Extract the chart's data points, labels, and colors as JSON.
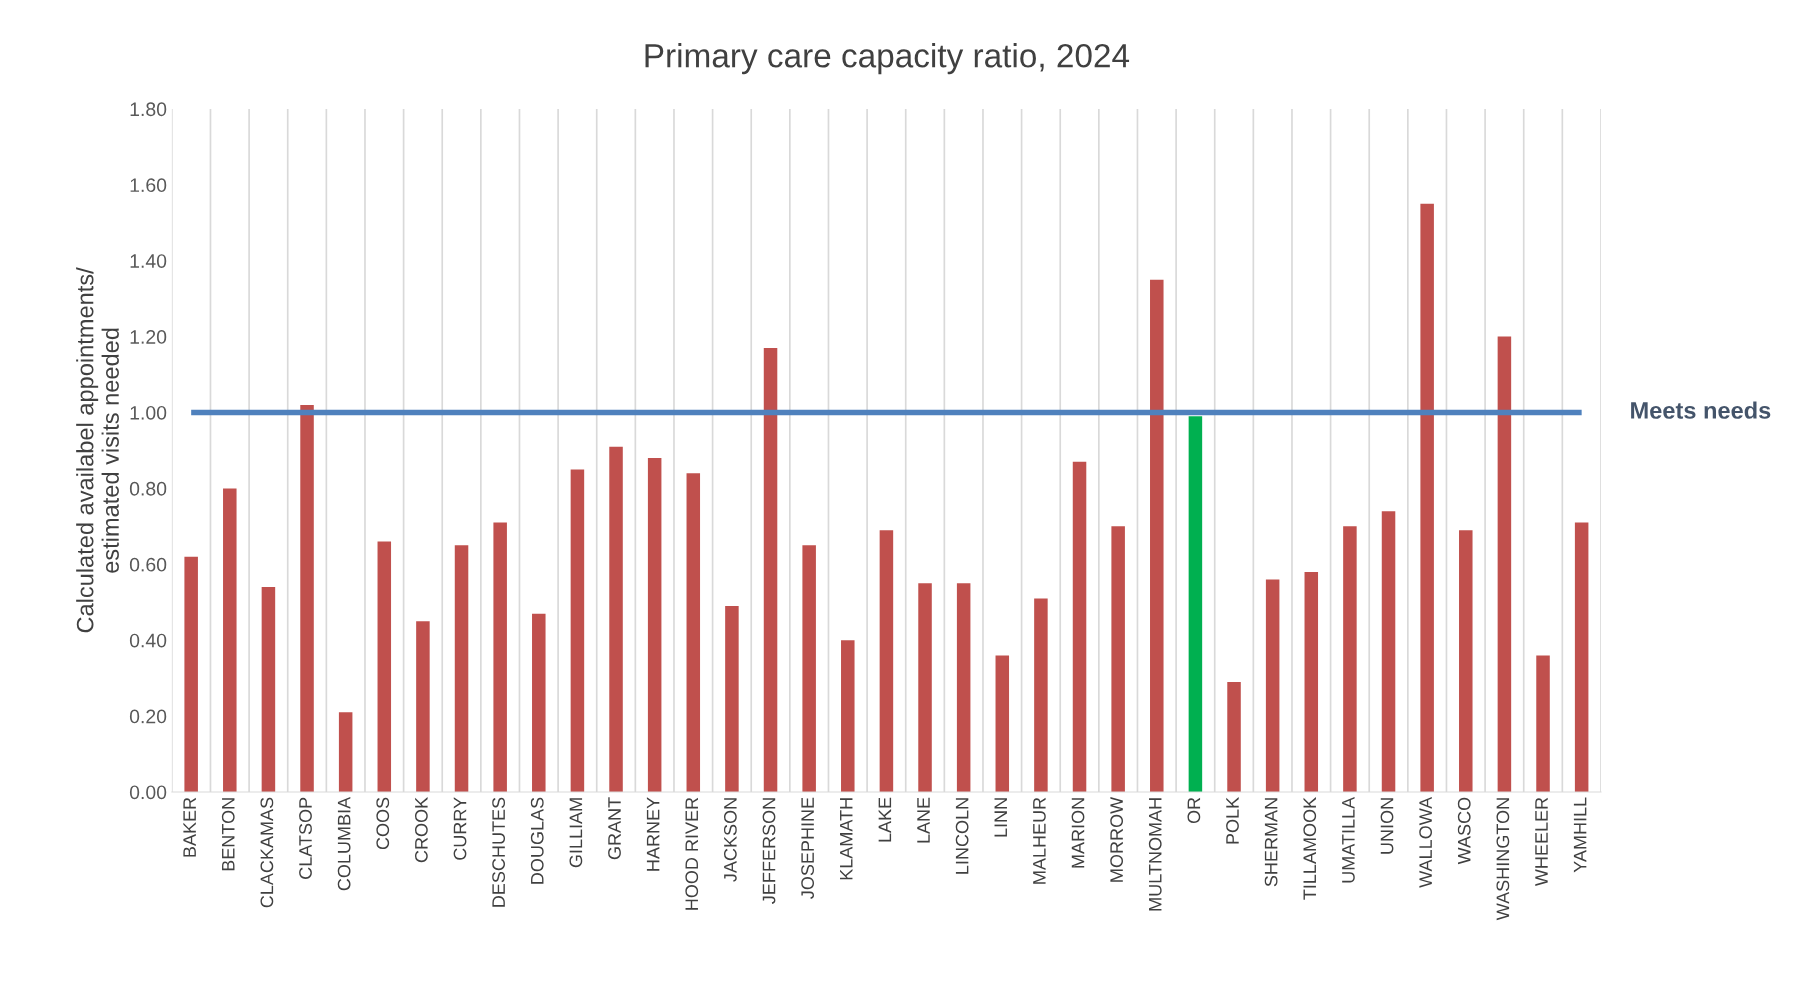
{
  "chart_data": {
    "type": "bar",
    "title": "Primary care capacity ratio, 2024",
    "ylabel": "Calculated availabel appointments/\nestimated visits needed",
    "categories": [
      "BAKER",
      "BENTON",
      "CLACKAMAS",
      "CLATSOP",
      "COLUMBIA",
      "COOS",
      "CROOK",
      "CURRY",
      "DESCHUTES",
      "DOUGLAS",
      "GILLIAM",
      "GRANT",
      "HARNEY",
      "HOOD RIVER",
      "JACKSON",
      "JEFFERSON",
      "JOSEPHINE",
      "KLAMATH",
      "LAKE",
      "LANE",
      "LINCOLN",
      "LINN",
      "MALHEUR",
      "MARION",
      "MORROW",
      "MULTNOMAH",
      "OR",
      "POLK",
      "SHERMAN",
      "TILLAMOOK",
      "UMATILLA",
      "UNION",
      "WALLOWA",
      "WASCO",
      "WASHINGTON",
      "WHEELER",
      "YAMHILL"
    ],
    "values": [
      0.62,
      0.8,
      0.54,
      1.02,
      0.21,
      0.66,
      0.45,
      0.65,
      0.71,
      0.47,
      0.85,
      0.91,
      0.88,
      0.84,
      0.49,
      1.17,
      0.65,
      0.4,
      0.69,
      0.55,
      0.55,
      0.36,
      0.51,
      0.87,
      0.7,
      1.35,
      0.99,
      0.29,
      0.56,
      0.58,
      0.7,
      0.74,
      1.55,
      0.69,
      1.2,
      0.36,
      0.71
    ],
    "colors": [
      "#c0504d",
      "#c0504d",
      "#c0504d",
      "#c0504d",
      "#c0504d",
      "#c0504d",
      "#c0504d",
      "#c0504d",
      "#c0504d",
      "#c0504d",
      "#c0504d",
      "#c0504d",
      "#c0504d",
      "#c0504d",
      "#c0504d",
      "#c0504d",
      "#c0504d",
      "#c0504d",
      "#c0504d",
      "#c0504d",
      "#c0504d",
      "#c0504d",
      "#c0504d",
      "#c0504d",
      "#c0504d",
      "#c0504d",
      "#00b050",
      "#c0504d",
      "#c0504d",
      "#c0504d",
      "#c0504d",
      "#c0504d",
      "#c0504d",
      "#c0504d",
      "#c0504d",
      "#c0504d",
      "#c0504d"
    ],
    "ylim": [
      0,
      1.8
    ],
    "yticks": [
      {
        "value": 0,
        "label": "0.00"
      },
      {
        "value": 0.2,
        "label": "0.20"
      },
      {
        "value": 0.4,
        "label": "0.40"
      },
      {
        "value": 0.6,
        "label": "0.60"
      },
      {
        "value": 0.8,
        "label": "0.80"
      },
      {
        "value": 1.0,
        "label": "1.00"
      },
      {
        "value": 1.2,
        "label": "1.20"
      },
      {
        "value": 1.4,
        "label": "1.40"
      },
      {
        "value": 1.6,
        "label": "1.60"
      },
      {
        "value": 1.8,
        "label": "1.80"
      }
    ],
    "ref_lines": [
      {
        "axis": "y",
        "value": 1.0,
        "label": "Meets needs",
        "color": "#4f81bd"
      }
    ],
    "grid": "x",
    "legend": false
  }
}
